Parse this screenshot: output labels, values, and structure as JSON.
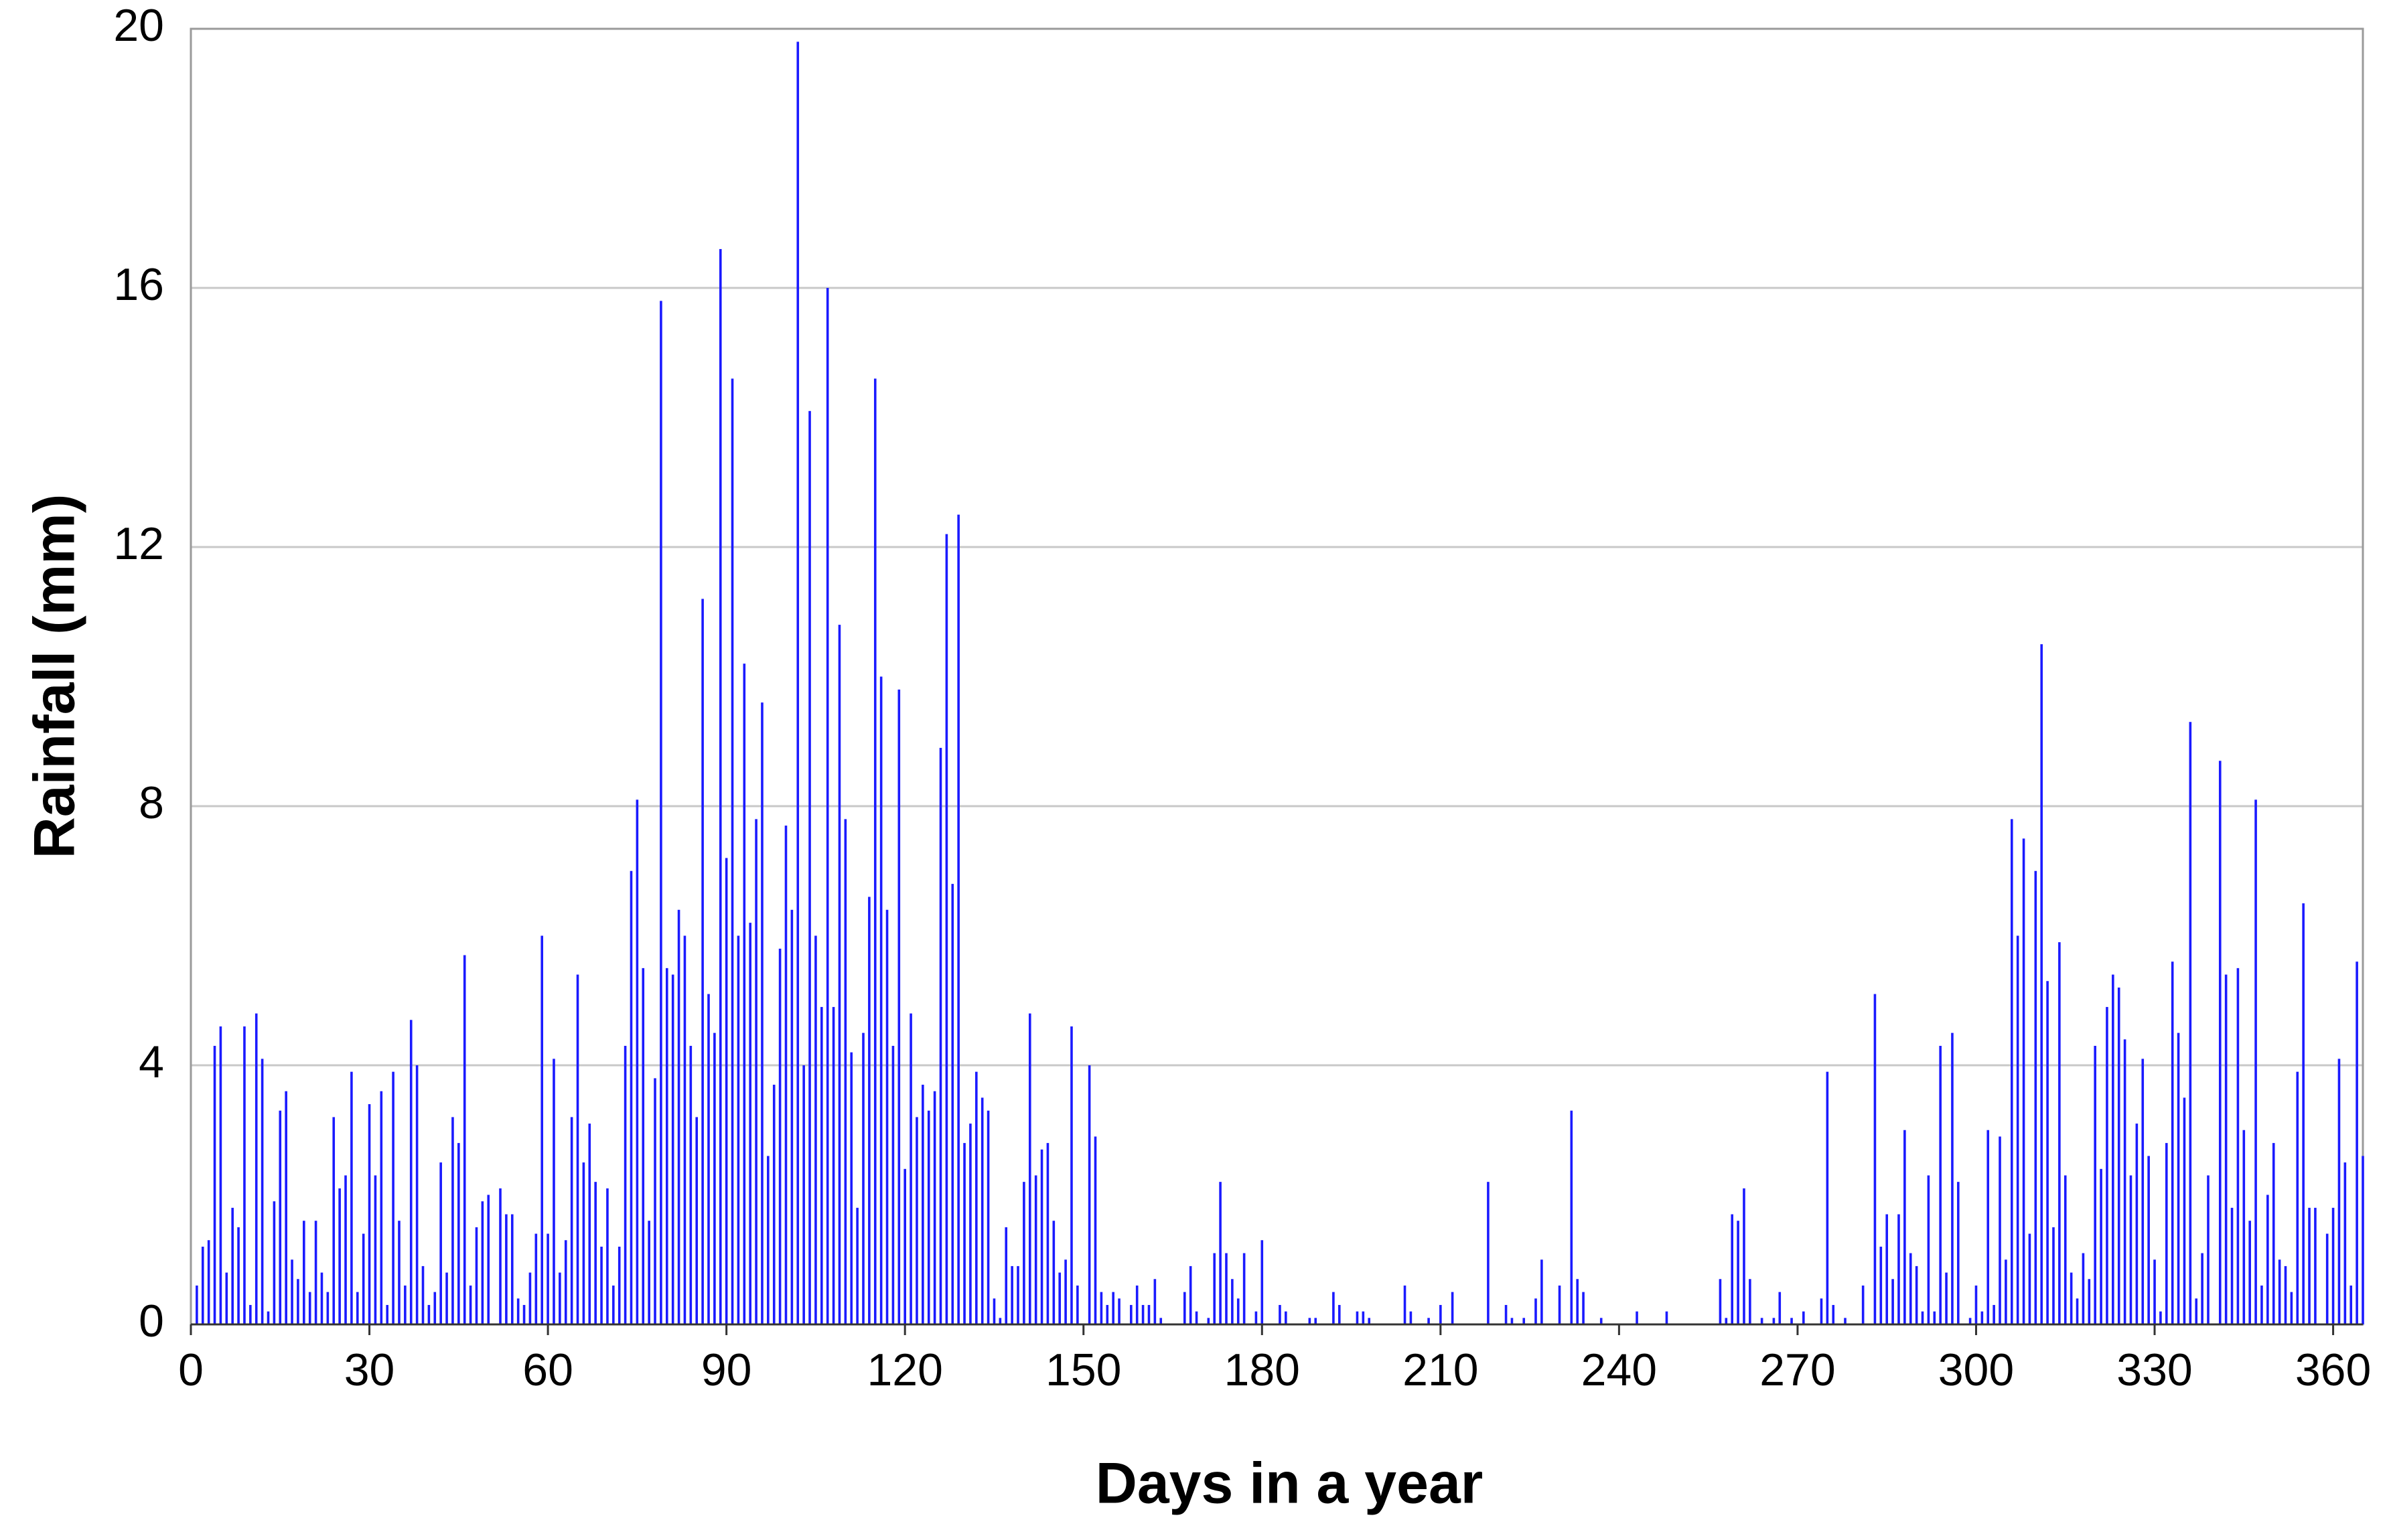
{
  "chart_data": {
    "type": "bar",
    "x_label": "Days in a year",
    "y_label": "Rainfall (mm)",
    "color": "#1a1aff",
    "grid": true,
    "xlim": [
      0,
      365
    ],
    "xticks": [
      0,
      30,
      60,
      90,
      120,
      150,
      180,
      210,
      240,
      270,
      300,
      330,
      360
    ],
    "ylim": [
      0,
      20
    ],
    "yticks": [
      0,
      4,
      8,
      12,
      16,
      20
    ],
    "x": [
      1,
      2,
      3,
      4,
      5,
      6,
      7,
      8,
      9,
      10,
      11,
      12,
      13,
      14,
      15,
      16,
      17,
      18,
      19,
      20,
      21,
      22,
      23,
      24,
      25,
      26,
      27,
      28,
      29,
      30,
      31,
      32,
      33,
      34,
      35,
      36,
      37,
      38,
      39,
      40,
      41,
      42,
      43,
      44,
      45,
      46,
      47,
      48,
      49,
      50,
      51,
      52,
      53,
      54,
      55,
      56,
      57,
      58,
      59,
      60,
      61,
      62,
      63,
      64,
      65,
      66,
      67,
      68,
      69,
      70,
      71,
      72,
      73,
      74,
      75,
      76,
      77,
      78,
      79,
      80,
      81,
      82,
      83,
      84,
      85,
      86,
      87,
      88,
      89,
      90,
      91,
      92,
      93,
      94,
      95,
      96,
      97,
      98,
      99,
      100,
      101,
      102,
      103,
      104,
      105,
      106,
      107,
      108,
      109,
      110,
      111,
      112,
      113,
      114,
      115,
      116,
      117,
      118,
      119,
      120,
      121,
      122,
      123,
      124,
      125,
      126,
      127,
      128,
      129,
      130,
      131,
      132,
      133,
      134,
      135,
      136,
      137,
      138,
      139,
      140,
      141,
      142,
      143,
      144,
      145,
      146,
      147,
      148,
      149,
      150,
      151,
      152,
      153,
      154,
      155,
      156,
      157,
      158,
      159,
      160,
      161,
      162,
      163,
      164,
      165,
      166,
      167,
      168,
      169,
      170,
      171,
      172,
      173,
      174,
      175,
      176,
      177,
      178,
      179,
      180,
      181,
      182,
      183,
      184,
      185,
      186,
      187,
      188,
      189,
      190,
      191,
      192,
      193,
      194,
      195,
      196,
      197,
      198,
      199,
      200,
      201,
      202,
      203,
      204,
      205,
      206,
      207,
      208,
      209,
      210,
      211,
      212,
      213,
      214,
      215,
      216,
      217,
      218,
      219,
      220,
      221,
      222,
      223,
      224,
      225,
      226,
      227,
      228,
      229,
      230,
      231,
      232,
      233,
      234,
      235,
      236,
      237,
      238,
      239,
      240,
      241,
      242,
      243,
      244,
      245,
      246,
      247,
      248,
      249,
      250,
      251,
      252,
      253,
      254,
      255,
      256,
      257,
      258,
      259,
      260,
      261,
      262,
      263,
      264,
      265,
      266,
      267,
      268,
      269,
      270,
      271,
      272,
      273,
      274,
      275,
      276,
      277,
      278,
      279,
      280,
      281,
      282,
      283,
      284,
      285,
      286,
      287,
      288,
      289,
      290,
      291,
      292,
      293,
      294,
      295,
      296,
      297,
      298,
      299,
      300,
      301,
      302,
      303,
      304,
      305,
      306,
      307,
      308,
      309,
      310,
      311,
      312,
      313,
      314,
      315,
      316,
      317,
      318,
      319,
      320,
      321,
      322,
      323,
      324,
      325,
      326,
      327,
      328,
      329,
      330,
      331,
      332,
      333,
      334,
      335,
      336,
      337,
      338,
      339,
      340,
      341,
      342,
      343,
      344,
      345,
      346,
      347,
      348,
      349,
      350,
      351,
      352,
      353,
      354,
      355,
      356,
      357,
      358,
      359,
      360,
      361,
      362,
      363,
      364,
      365
    ],
    "values": [
      0.6,
      1.2,
      1.3,
      4.3,
      4.6,
      0.8,
      1.8,
      1.5,
      4.6,
      0.3,
      4.8,
      4.1,
      0.2,
      1.9,
      3.3,
      3.6,
      1.0,
      0.7,
      1.6,
      0.5,
      1.6,
      0.8,
      0.5,
      3.2,
      2.1,
      2.3,
      3.9,
      0.5,
      1.4,
      3.4,
      2.3,
      3.6,
      0.3,
      3.9,
      1.6,
      0.6,
      4.7,
      4.0,
      0.9,
      0.3,
      0.5,
      2.5,
      0.8,
      3.2,
      2.8,
      5.7,
      0.6,
      1.5,
      1.9,
      2.0,
      0,
      2.1,
      1.7,
      1.7,
      0.4,
      0.3,
      0.8,
      1.4,
      6.0,
      1.4,
      4.1,
      0.8,
      1.3,
      3.2,
      5.4,
      2.5,
      3.1,
      2.2,
      1.2,
      2.1,
      0.6,
      1.2,
      4.3,
      7.0,
      8.1,
      5.5,
      1.6,
      3.8,
      15.8,
      5.5,
      5.4,
      6.4,
      6.0,
      4.3,
      3.2,
      11.2,
      5.1,
      4.5,
      16.6,
      7.2,
      14.6,
      6.0,
      10.2,
      6.2,
      7.8,
      9.6,
      2.6,
      3.7,
      5.8,
      7.7,
      6.4,
      19.8,
      4.0,
      14.1,
      6.0,
      4.9,
      16.0,
      4.9,
      10.8,
      7.8,
      4.2,
      1.8,
      4.5,
      6.6,
      14.6,
      10.0,
      6.4,
      4.3,
      9.8,
      2.4,
      4.8,
      3.2,
      3.7,
      3.3,
      3.6,
      8.9,
      12.2,
      6.8,
      12.5,
      2.8,
      3.1,
      3.9,
      3.5,
      3.3,
      0.4,
      0.1,
      1.5,
      0.9,
      0.9,
      2.2,
      4.8,
      2.3,
      2.7,
      2.8,
      1.6,
      0.8,
      1.0,
      4.6,
      0.6,
      0,
      4.0,
      2.9,
      0.5,
      0.3,
      0.5,
      0.4,
      0,
      0.3,
      0.6,
      0.3,
      0.3,
      0.7,
      0.1,
      0,
      0,
      0,
      0.5,
      0.9,
      0.2,
      0,
      0.1,
      1.1,
      2.2,
      1.1,
      0.7,
      0.4,
      1.1,
      0,
      0.2,
      1.3,
      0,
      0,
      0.3,
      0.2,
      0,
      0,
      0,
      0.1,
      0.1,
      0,
      0,
      0.5,
      0.3,
      0,
      0,
      0.2,
      0.2,
      0.1,
      0,
      0,
      0,
      0,
      0,
      0.6,
      0.2,
      0,
      0,
      0.1,
      0,
      0.3,
      0,
      0.5,
      0,
      0,
      0,
      0,
      0,
      2.2,
      0,
      0,
      0.3,
      0.1,
      0,
      0.1,
      0,
      0.4,
      1.0,
      0,
      0,
      0.6,
      0,
      3.3,
      0.7,
      0.5,
      0,
      0,
      0.1,
      0,
      0,
      0,
      0,
      0,
      0.2,
      0,
      0,
      0,
      0,
      0.2,
      0,
      0,
      0,
      0,
      0,
      0,
      0,
      0,
      0.7,
      0.1,
      1.7,
      1.6,
      2.1,
      0.7,
      0,
      0.1,
      0,
      0.1,
      0.5,
      0,
      0.1,
      0,
      0.2,
      0,
      0,
      0.4,
      3.9,
      0.3,
      0,
      0.1,
      0,
      0,
      0.6,
      0,
      5.1,
      1.2,
      1.7,
      0.7,
      1.7,
      3.0,
      1.1,
      0.9,
      0.2,
      2.3,
      0.2,
      4.3,
      0.8,
      4.5,
      2.2,
      0,
      0.1,
      0.6,
      0.2,
      3.0,
      0.3,
      2.9,
      1.0,
      7.8,
      6.0,
      7.5,
      1.4,
      7.0,
      10.5,
      5.3,
      1.5,
      5.9,
      2.3,
      0.8,
      0.4,
      1.1,
      0.7,
      4.3,
      2.4,
      4.9,
      5.4,
      5.2,
      4.4,
      2.3,
      3.1,
      4.1,
      2.6,
      1.0,
      0.2,
      2.8,
      5.6,
      4.5,
      3.5,
      9.3,
      0.4,
      1.1,
      2.3,
      0,
      8.7,
      5.4,
      1.8,
      5.5,
      3.0,
      1.6,
      8.1,
      0.6,
      2.0,
      2.8,
      1.0,
      0.9,
      0.5,
      3.9,
      6.5,
      1.8,
      1.8,
      0,
      1.4,
      1.8,
      4.1,
      2.5,
      0.6,
      5.6,
      2.6
    ]
  }
}
